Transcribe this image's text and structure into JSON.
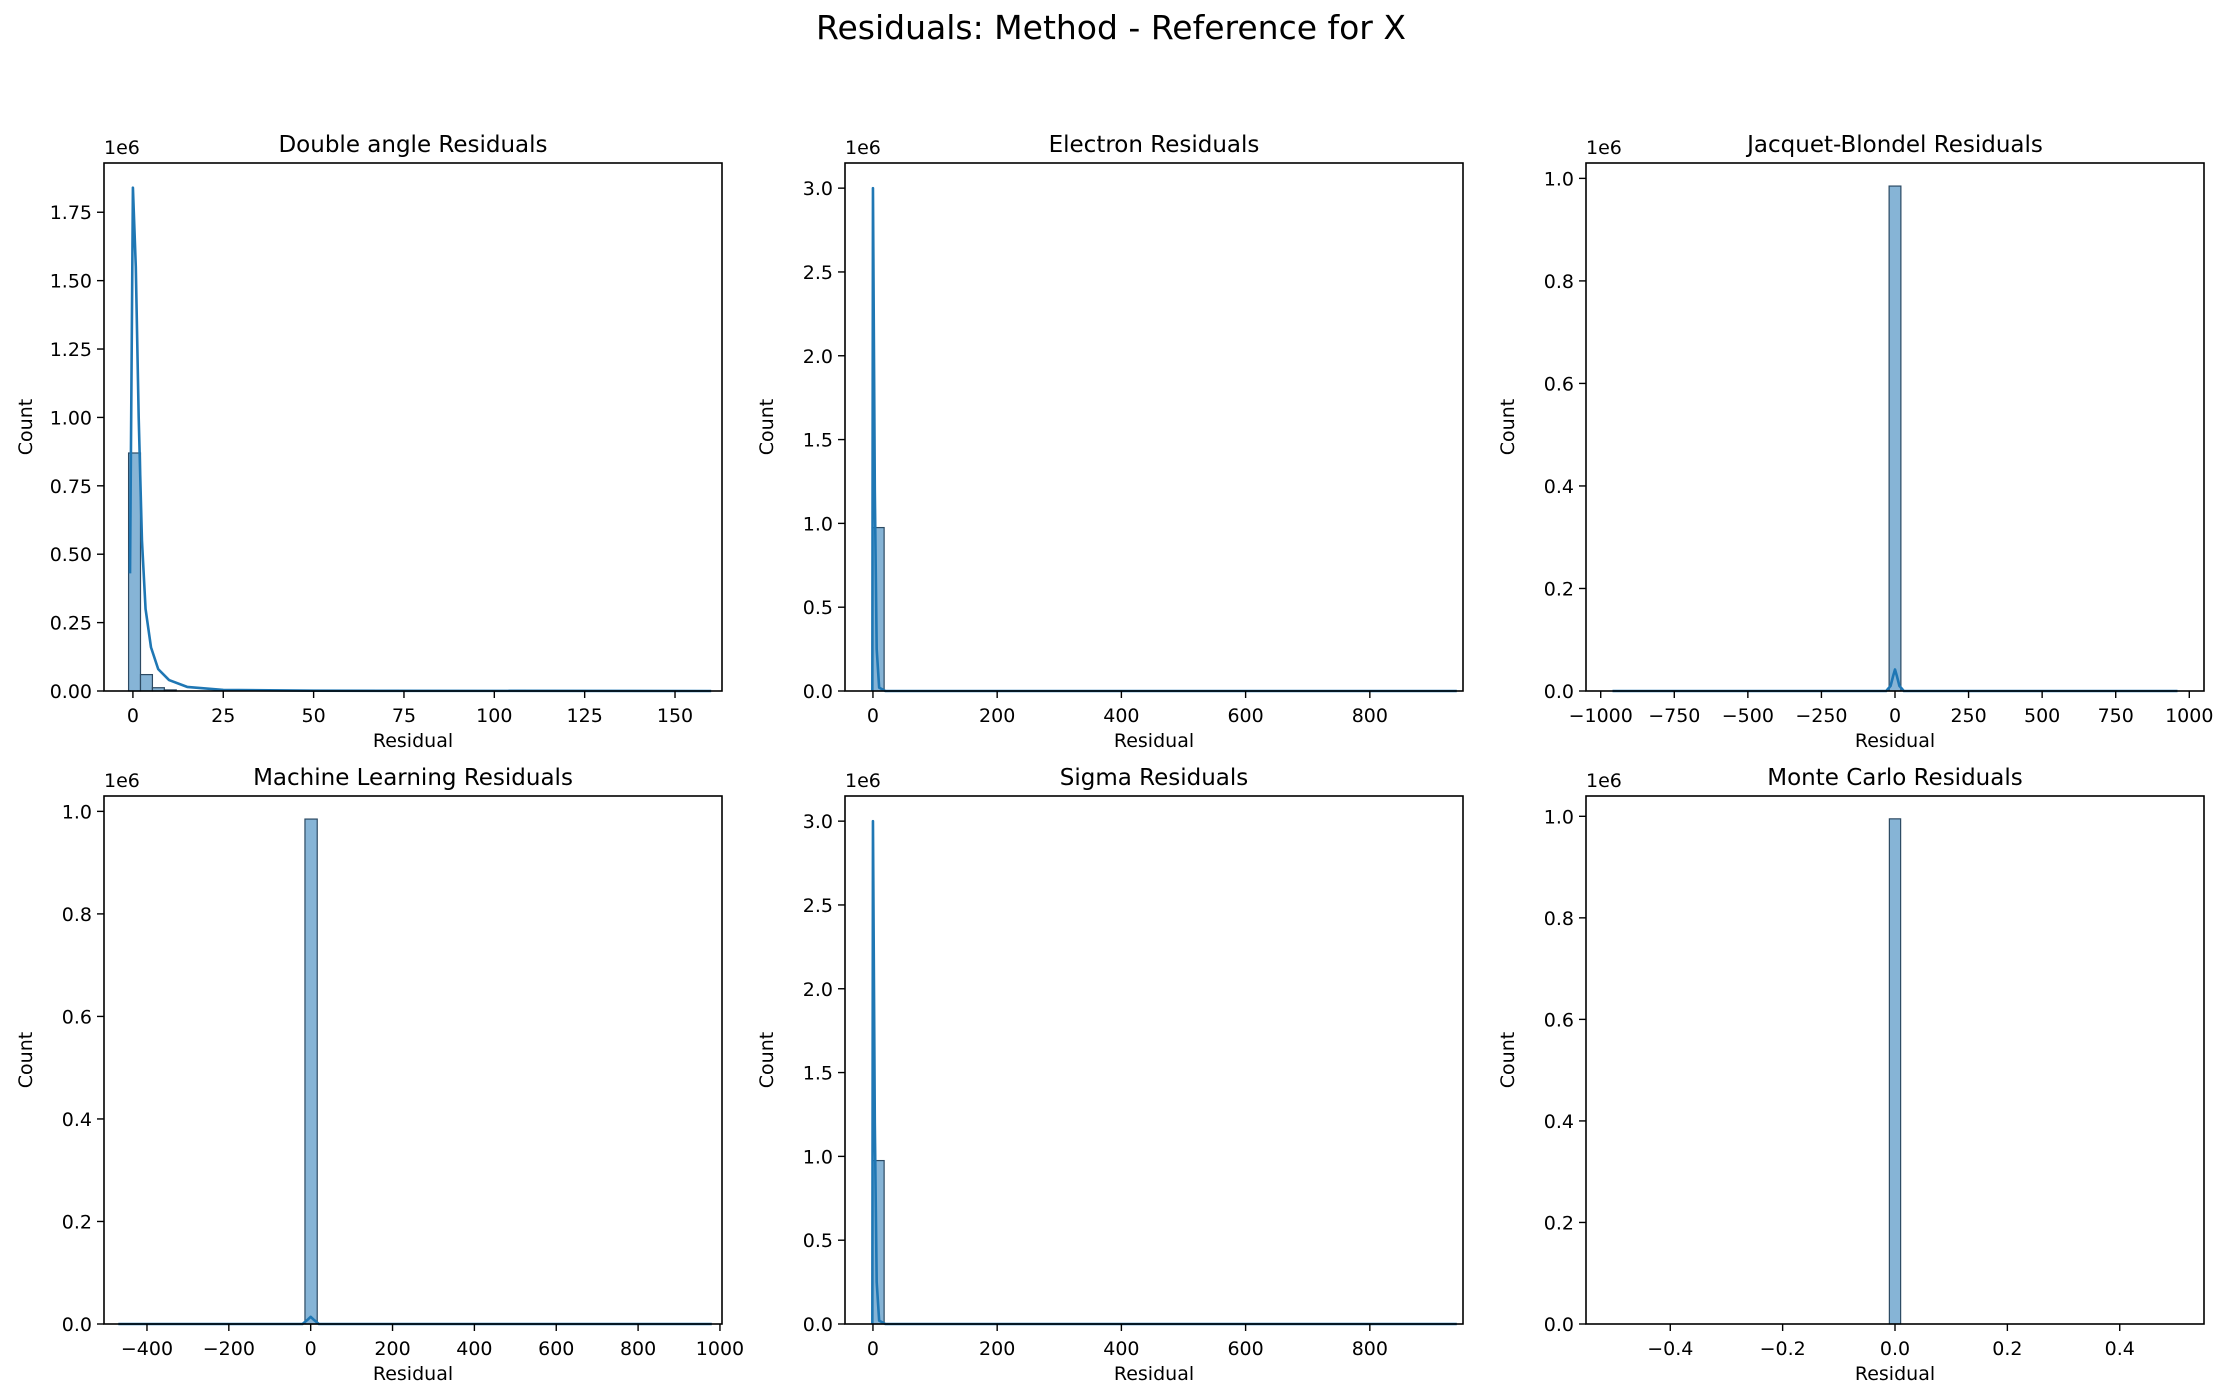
{
  "figure": {
    "title": "Residuals: Method - Reference for X"
  },
  "colors": {
    "bar_fill": "#86b4d6",
    "bar_edge": "#2c4a63",
    "kde_line": "#1f77b4",
    "axes": "#000000"
  },
  "chart_data": [
    {
      "type": "bar",
      "title": "Double angle Residuals",
      "xlabel": "Residual",
      "ylabel": "Count",
      "scale_label": "1e6",
      "xlim": [
        -8,
        163
      ],
      "ylim": [
        0,
        1.93
      ],
      "xticks": [
        0,
        25,
        50,
        75,
        100,
        125,
        150
      ],
      "xtick_labels": [
        "0",
        "25",
        "50",
        "75",
        "100",
        "125",
        "150"
      ],
      "yticks": [
        0,
        0.25,
        0.5,
        0.75,
        1.0,
        1.25,
        1.5,
        1.75
      ],
      "ytick_labels": [
        "0.00",
        "0.25",
        "0.50",
        "0.75",
        "1.00",
        "1.25",
        "1.50",
        "1.75"
      ],
      "bins": [
        {
          "x0": -1.2,
          "x1": 2.1,
          "value": 0.87
        },
        {
          "x0": 2.1,
          "x1": 5.4,
          "value": 0.06
        },
        {
          "x0": 5.4,
          "x1": 8.7,
          "value": 0.012
        },
        {
          "x0": 8.7,
          "x1": 12.0,
          "value": 0.004
        }
      ],
      "kde": [
        [
          -0.8,
          0.43
        ],
        [
          0.0,
          1.84
        ],
        [
          0.8,
          1.55
        ],
        [
          1.6,
          1.0
        ],
        [
          2.5,
          0.55
        ],
        [
          3.5,
          0.3
        ],
        [
          5,
          0.16
        ],
        [
          7,
          0.08
        ],
        [
          10,
          0.04
        ],
        [
          15,
          0.015
        ],
        [
          25,
          0.004
        ],
        [
          50,
          0.001
        ],
        [
          160,
          0.0
        ]
      ]
    },
    {
      "type": "bar",
      "title": "Electron Residuals",
      "xlabel": "Residual",
      "ylabel": "Count",
      "scale_label": "1e6",
      "xlim": [
        -45,
        950
      ],
      "ylim": [
        0,
        3.15
      ],
      "xticks": [
        0,
        200,
        400,
        600,
        800
      ],
      "xtick_labels": [
        "0",
        "200",
        "400",
        "600",
        "800"
      ],
      "yticks": [
        0,
        0.5,
        1.0,
        1.5,
        2.0,
        2.5,
        3.0
      ],
      "ytick_labels": [
        "0.0",
        "0.5",
        "1.0",
        "1.5",
        "2.0",
        "2.5",
        "3.0"
      ],
      "bins": [
        {
          "x0": -1,
          "x1": 18,
          "value": 0.975
        }
      ],
      "kde": [
        [
          -1,
          0.0
        ],
        [
          0,
          3.0
        ],
        [
          3,
          1.2
        ],
        [
          6,
          0.25
        ],
        [
          10,
          0.02
        ],
        [
          20,
          0.0
        ],
        [
          940,
          0.0
        ]
      ]
    },
    {
      "type": "bar",
      "title": "Jacquet-Blondel Residuals",
      "xlabel": "Residual",
      "ylabel": "Count",
      "scale_label": "1e6",
      "xlim": [
        -1050,
        1050
      ],
      "ylim": [
        0,
        1.03
      ],
      "xticks": [
        -1000,
        -750,
        -500,
        -250,
        0,
        250,
        500,
        750,
        1000
      ],
      "xtick_labels": [
        "−1000",
        "−750",
        "−500",
        "−250",
        "0",
        "250",
        "500",
        "750",
        "1000"
      ],
      "yticks": [
        0,
        0.2,
        0.4,
        0.6,
        0.8,
        1.0
      ],
      "ytick_labels": [
        "0.0",
        "0.2",
        "0.4",
        "0.6",
        "0.8",
        "1.0"
      ],
      "bins": [
        {
          "x0": -20,
          "x1": 20,
          "value": 0.985
        }
      ],
      "kde": [
        [
          -960,
          0.0
        ],
        [
          -30,
          0.0
        ],
        [
          -15,
          0.01
        ],
        [
          -6,
          0.03
        ],
        [
          0,
          0.042
        ],
        [
          6,
          0.03
        ],
        [
          15,
          0.01
        ],
        [
          30,
          0.0
        ],
        [
          960,
          0.0
        ]
      ]
    },
    {
      "type": "bar",
      "title": "Machine Learning Residuals",
      "xlabel": "Residual",
      "ylabel": "Count",
      "scale_label": "1e6",
      "xlim": [
        -505,
        1005
      ],
      "ylim": [
        0,
        1.03
      ],
      "xticks": [
        -400,
        -200,
        0,
        200,
        400,
        600,
        800,
        1000
      ],
      "xtick_labels": [
        "−400",
        "−200",
        "0",
        "200",
        "400",
        "600",
        "800",
        "1000"
      ],
      "yticks": [
        0,
        0.2,
        0.4,
        0.6,
        0.8,
        1.0
      ],
      "ytick_labels": [
        "0.0",
        "0.2",
        "0.4",
        "0.6",
        "0.8",
        "1.0"
      ],
      "bins": [
        {
          "x0": -14,
          "x1": 16,
          "value": 0.985
        }
      ],
      "kde": [
        [
          -470,
          0.0
        ],
        [
          -20,
          0.0
        ],
        [
          -8,
          0.008
        ],
        [
          0,
          0.014
        ],
        [
          8,
          0.008
        ],
        [
          20,
          0.0
        ],
        [
          980,
          0.0
        ]
      ]
    },
    {
      "type": "bar",
      "title": "Sigma Residuals",
      "xlabel": "Residual",
      "ylabel": "Count",
      "scale_label": "1e6",
      "xlim": [
        -45,
        950
      ],
      "ylim": [
        0,
        3.15
      ],
      "xticks": [
        0,
        200,
        400,
        600,
        800
      ],
      "xtick_labels": [
        "0",
        "200",
        "400",
        "600",
        "800"
      ],
      "yticks": [
        0,
        0.5,
        1.0,
        1.5,
        2.0,
        2.5,
        3.0
      ],
      "ytick_labels": [
        "0.0",
        "0.5",
        "1.0",
        "1.5",
        "2.0",
        "2.5",
        "3.0"
      ],
      "bins": [
        {
          "x0": -1,
          "x1": 18,
          "value": 0.975
        }
      ],
      "kde": [
        [
          -1,
          0.0
        ],
        [
          0,
          3.0
        ],
        [
          3,
          1.2
        ],
        [
          6,
          0.25
        ],
        [
          10,
          0.02
        ],
        [
          20,
          0.0
        ],
        [
          940,
          0.0
        ]
      ]
    },
    {
      "type": "bar",
      "title": "Monte Carlo Residuals",
      "xlabel": "Residual",
      "ylabel": "Count",
      "scale_label": "1e6",
      "xlim": [
        -0.55,
        0.55
      ],
      "ylim": [
        0,
        1.04
      ],
      "xticks": [
        -0.4,
        -0.2,
        0.0,
        0.2,
        0.4
      ],
      "xtick_labels": [
        "−0.4",
        "−0.2",
        "0.0",
        "0.2",
        "0.4"
      ],
      "yticks": [
        0,
        0.2,
        0.4,
        0.6,
        0.8,
        1.0
      ],
      "ytick_labels": [
        "0.0",
        "0.2",
        "0.4",
        "0.6",
        "0.8",
        "1.0"
      ],
      "bins": [
        {
          "x0": -0.01,
          "x1": 0.01,
          "value": 0.995
        }
      ],
      "kde": []
    }
  ]
}
